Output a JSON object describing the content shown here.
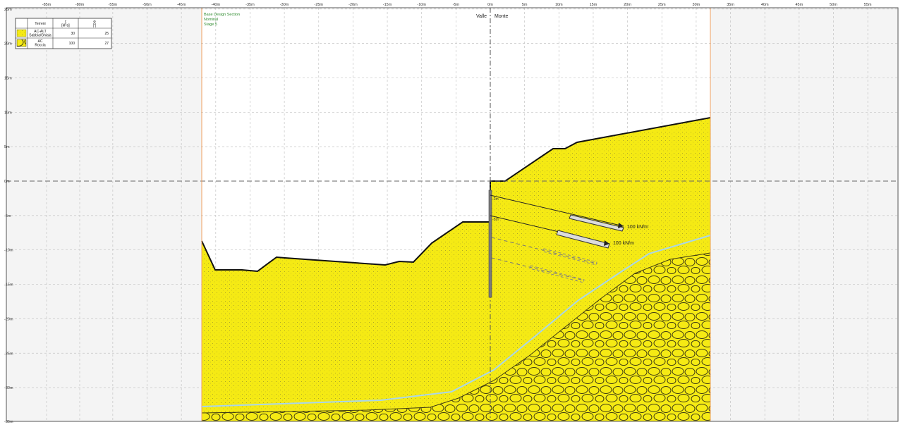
{
  "legend": {
    "headers": {
      "name": "Terreni",
      "c": "c\n[kPa]",
      "phi": "φ\n[°]"
    },
    "rows": [
      {
        "name": "AC-ALT\nSabbia/Ghiaia",
        "c": "30",
        "phi": "25",
        "pattern": "sand-icon"
      },
      {
        "name": "AC\nRoccia",
        "c": "100",
        "phi": "27",
        "pattern": "rock-icon"
      }
    ]
  },
  "section_info": {
    "line1": "Base Design Section",
    "line2": "Nominal",
    "line3": "Stage 5"
  },
  "labels": {
    "valle": "Valle",
    "monte": "Monte"
  },
  "axes": {
    "x_ticks": [
      "-85m",
      "-80m",
      "-55m",
      "-50m",
      "-45m",
      "-40m",
      "-35m",
      "-30m",
      "-25m",
      "-20m",
      "-15m",
      "-10m",
      "-5m",
      "0m",
      "5m",
      "10m",
      "15m",
      "20m",
      "25m",
      "30m",
      "35m",
      "40m",
      "45m",
      "50m",
      "55m"
    ],
    "y_ticks": [
      "25m",
      "20m",
      "15m",
      "10m",
      "5m",
      "0m",
      "-5m",
      "-10m",
      "-15m",
      "-20m",
      "-25m",
      "-30m",
      "-35m"
    ]
  },
  "anchors": [
    {
      "label": "100 kN/m",
      "depth_label": "-2m"
    },
    {
      "label": "100 kN/m",
      "depth_label": "-5m"
    }
  ],
  "colors": {
    "sand": "#f5ea14",
    "rock_outline": "#3d3a14",
    "ground_line": "#111111",
    "water_line": "#a9d6ea",
    "frame": "#f0a060",
    "info_text": "#2e8b2e"
  }
}
